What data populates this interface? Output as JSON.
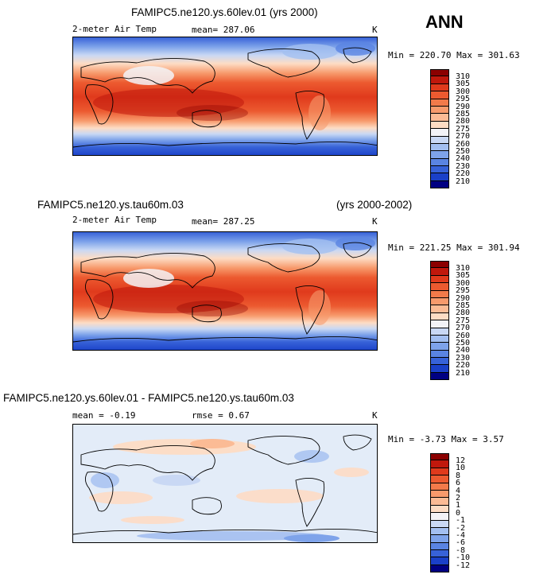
{
  "season": "ANN",
  "panels": [
    {
      "title": "FAMIPC5.ne120.ys.60lev.01 (yrs 2000)",
      "title_right": "",
      "variable": "2-meter Air Temp",
      "stat1": "mean= 287.06",
      "stat2": "",
      "units": "K",
      "minmax": "Min = 220.70 Max = 301.63",
      "colorbar_labels": [
        "310",
        "305",
        "300",
        "295",
        "290",
        "285",
        "280",
        "275",
        "270",
        "260",
        "250",
        "240",
        "230",
        "220",
        "210"
      ],
      "colorbar_colors": [
        "#8b0000",
        "#c0180c",
        "#e03a1c",
        "#ec5a30",
        "#f27a4a",
        "#f79a6c",
        "#fbbb95",
        "#fddcc4",
        "#f3f3f7",
        "#c9d8f4",
        "#a3bff0",
        "#7ea3ea",
        "#5a84e2",
        "#3762d8",
        "#1a40c8",
        "#000082"
      ]
    },
    {
      "title": "FAMIPC5.ne120.ys.tau60m.03",
      "title_right": "(yrs 2000-2002)",
      "variable": "2-meter Air Temp",
      "stat1": "mean= 287.25",
      "stat2": "",
      "units": "K",
      "minmax": "Min = 221.25 Max = 301.94",
      "colorbar_labels": [
        "310",
        "305",
        "300",
        "295",
        "290",
        "285",
        "280",
        "275",
        "270",
        "260",
        "250",
        "240",
        "230",
        "220",
        "210"
      ],
      "colorbar_colors": [
        "#8b0000",
        "#c0180c",
        "#e03a1c",
        "#ec5a30",
        "#f27a4a",
        "#f79a6c",
        "#fbbb95",
        "#fddcc4",
        "#f3f3f7",
        "#c9d8f4",
        "#a3bff0",
        "#7ea3ea",
        "#5a84e2",
        "#3762d8",
        "#1a40c8",
        "#000082"
      ]
    },
    {
      "title": "FAMIPC5.ne120.ys.60lev.01 - FAMIPC5.ne120.ys.tau60m.03",
      "title_right": "",
      "variable": "",
      "stat1": "mean = -0.19",
      "stat2": "rmse = 0.67",
      "units": "K",
      "minmax": "Min = -3.73 Max = 3.57",
      "colorbar_labels": [
        "12",
        "10",
        "8",
        "6",
        "4",
        "2",
        "1",
        "0",
        "-1",
        "-2",
        "-4",
        "-6",
        "-8",
        "-10",
        "-12"
      ],
      "colorbar_colors": [
        "#8b0000",
        "#c0180c",
        "#e03a1c",
        "#ec5a30",
        "#f27a4a",
        "#f79a6c",
        "#fbbb95",
        "#fddcc4",
        "#f3f3f7",
        "#c9d8f4",
        "#a3bff0",
        "#7ea3ea",
        "#5a84e2",
        "#3762d8",
        "#1a40c8",
        "#000082"
      ]
    }
  ]
}
